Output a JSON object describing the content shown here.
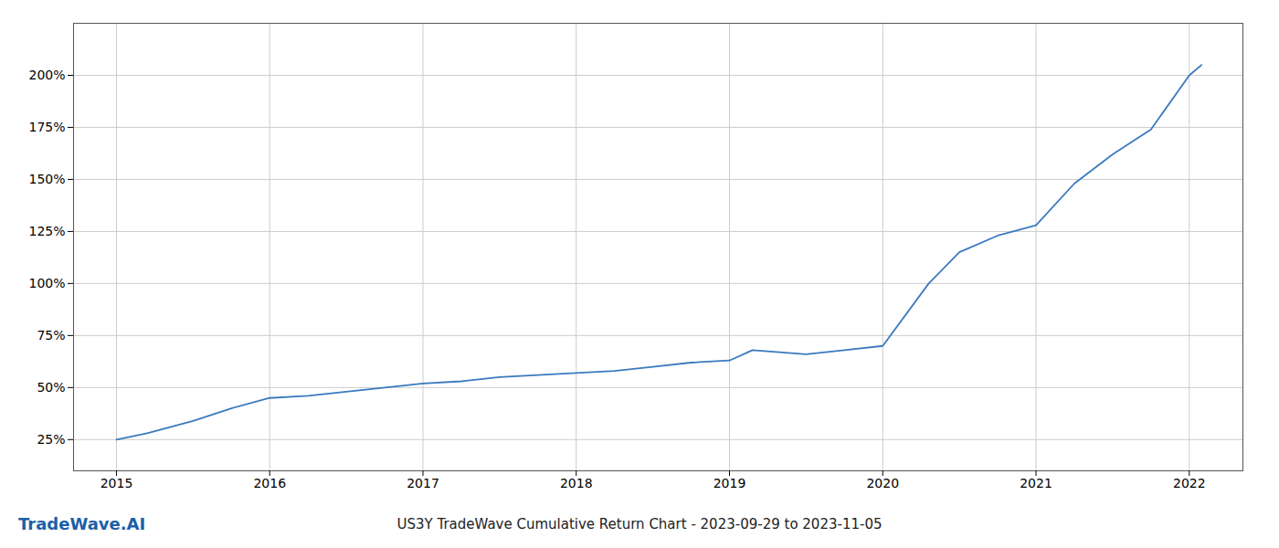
{
  "chart_data": {
    "type": "line",
    "title": "US3Y TradeWave Cumulative Return Chart - 2023-09-29 to 2023-11-05",
    "annotations": [
      "TradeWave.AI"
    ],
    "x": [
      2015.0,
      2015.2,
      2015.5,
      2015.75,
      2016.0,
      2016.25,
      2016.5,
      2016.75,
      2017.0,
      2017.25,
      2017.5,
      2017.75,
      2018.0,
      2018.25,
      2018.5,
      2018.75,
      2019.0,
      2019.15,
      2019.5,
      2019.75,
      2020.0,
      2020.3,
      2020.5,
      2020.75,
      2021.0,
      2021.25,
      2021.5,
      2021.75,
      2022.0,
      2022.08
    ],
    "values": [
      25,
      28,
      34,
      40,
      45,
      46,
      48,
      50,
      52,
      53,
      55,
      56,
      57,
      58,
      60,
      62,
      63,
      68,
      66,
      68,
      70,
      100,
      115,
      123,
      128,
      148,
      162,
      174,
      200,
      205
    ],
    "color": "#3a7abf",
    "xlim": [
      2014.72,
      2022.35
    ],
    "ylim": [
      10,
      225
    ],
    "xticks": [
      2015,
      2016,
      2017,
      2018,
      2019,
      2020,
      2021,
      2022
    ],
    "yticks": [
      {
        "value": 25,
        "label": "25%"
      },
      {
        "value": 50,
        "label": "50%"
      },
      {
        "value": 75,
        "label": "75%"
      },
      {
        "value": 100,
        "label": "100%"
      },
      {
        "value": 125,
        "label": "125%"
      },
      {
        "value": 150,
        "label": "150%"
      },
      {
        "value": 175,
        "label": "175%"
      },
      {
        "value": 200,
        "label": "200%"
      }
    ],
    "grid": true
  }
}
